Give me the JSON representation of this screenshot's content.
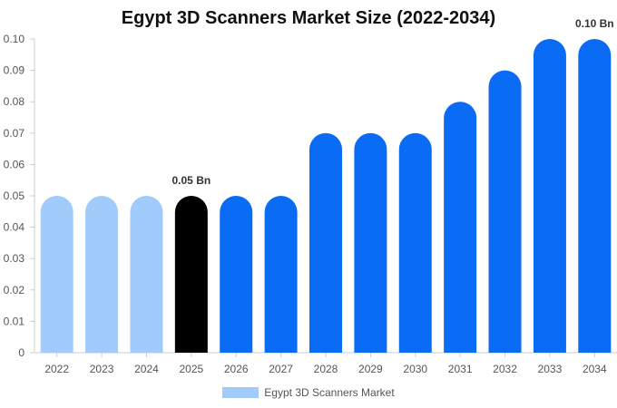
{
  "chart_data": {
    "type": "bar",
    "title": "Egypt 3D Scanners Market Size (2022-2034)",
    "xlabel": "",
    "ylabel": "",
    "categories": [
      "2022",
      "2023",
      "2024",
      "2025",
      "2026",
      "2027",
      "2028",
      "2029",
      "2030",
      "2031",
      "2032",
      "2033",
      "2034"
    ],
    "series": [
      {
        "name": "Egypt 3D Scanners Market",
        "values": [
          0.05,
          0.05,
          0.05,
          0.05,
          0.05,
          0.05,
          0.07,
          0.07,
          0.07,
          0.08,
          0.09,
          0.1,
          0.1
        ]
      }
    ],
    "ylim": [
      0,
      0.1
    ],
    "yticks": [
      "0",
      "0.01",
      "0.02",
      "0.03",
      "0.04",
      "0.05",
      "0.06",
      "0.07",
      "0.08",
      "0.09",
      "0.10"
    ],
    "bar_colors": [
      "#a0cbfb",
      "#a0cbfb",
      "#a0cbfb",
      "#000000",
      "#0a6cf5",
      "#0a6cf5",
      "#0a6cf5",
      "#0a6cf5",
      "#0a6cf5",
      "#0a6cf5",
      "#0a6cf5",
      "#0a6cf5",
      "#0a6cf5"
    ],
    "data_labels": [
      {
        "category": "2025",
        "text": "0.05 Bn"
      },
      {
        "category": "2034",
        "text": "0.10 Bn"
      }
    ],
    "legend": {
      "position": "bottom",
      "color": "#a0cbfb"
    },
    "grid": false
  }
}
